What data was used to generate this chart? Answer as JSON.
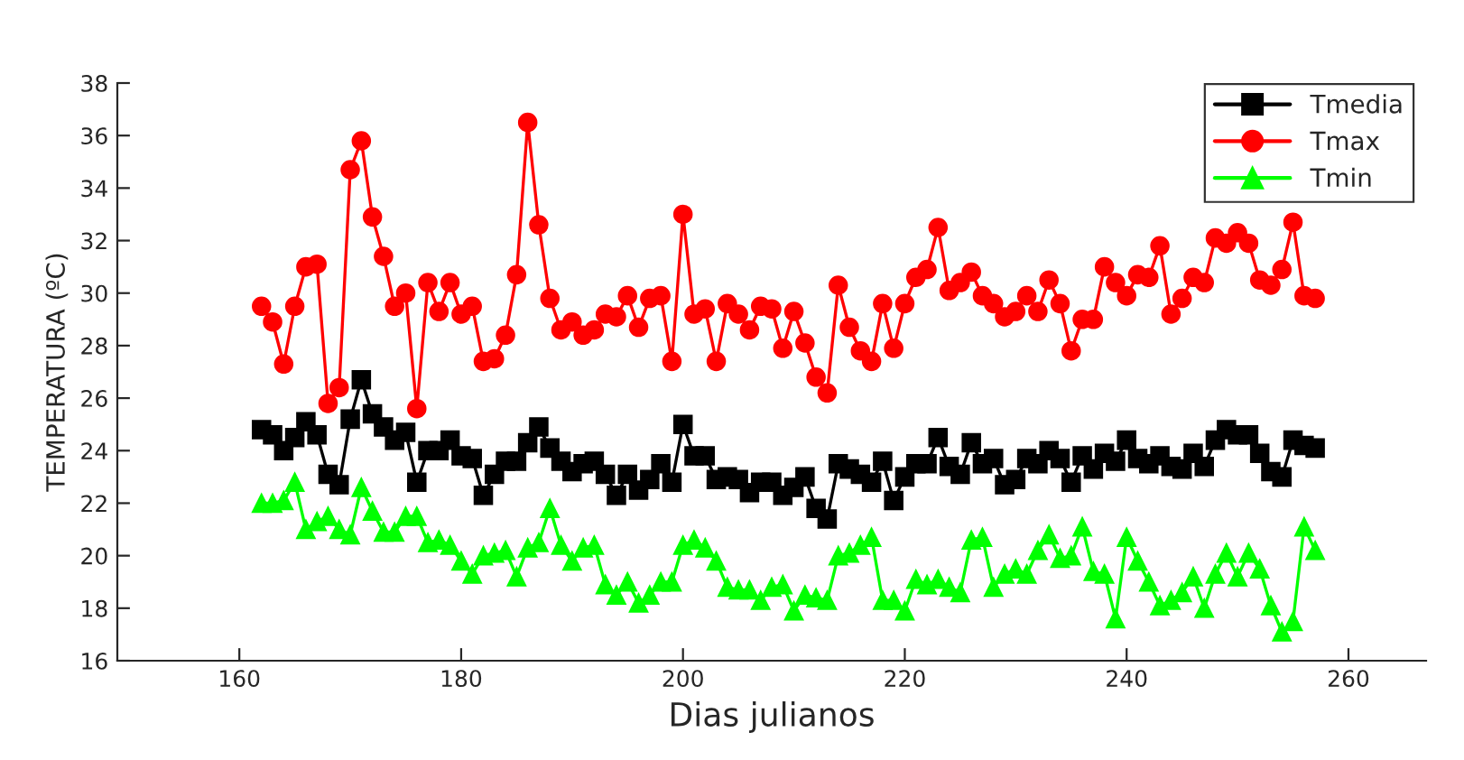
{
  "chart_data": {
    "type": "line",
    "xlabel": "Dias julianos",
    "ylabel": "TEMPERATURA (ºC)",
    "x": [
      162,
      163,
      164,
      165,
      166,
      167,
      168,
      169,
      170,
      171,
      172,
      173,
      174,
      175,
      176,
      177,
      178,
      179,
      180,
      181,
      182,
      183,
      184,
      185,
      186,
      187,
      188,
      189,
      190,
      191,
      192,
      193,
      194,
      195,
      196,
      197,
      198,
      199,
      200,
      201,
      202,
      203,
      204,
      205,
      206,
      207,
      208,
      209,
      210,
      211,
      212,
      213,
      214,
      215,
      216,
      217,
      218,
      219,
      220,
      221,
      222,
      223,
      224,
      225,
      226,
      227,
      228,
      229,
      230,
      231,
      232,
      233,
      234,
      235,
      236,
      237,
      238,
      239,
      240,
      241,
      242,
      243,
      244,
      245,
      246,
      247,
      248,
      249,
      250,
      251,
      252,
      253,
      254,
      255,
      256,
      257
    ],
    "series": [
      {
        "name": "Tmedia",
        "color": "#000000",
        "marker": "square",
        "values": [
          24.8,
          24.6,
          24.0,
          24.5,
          25.1,
          24.6,
          23.1,
          22.7,
          25.2,
          26.7,
          25.4,
          24.9,
          24.4,
          24.7,
          22.8,
          24.0,
          24.0,
          24.4,
          23.8,
          23.7,
          22.3,
          23.1,
          23.6,
          23.6,
          24.3,
          24.9,
          24.1,
          23.6,
          23.2,
          23.5,
          23.6,
          23.1,
          22.3,
          23.1,
          22.5,
          22.9,
          23.5,
          22.8,
          25.0,
          23.8,
          23.8,
          22.9,
          23.0,
          22.9,
          22.4,
          22.8,
          22.8,
          22.3,
          22.6,
          23.0,
          21.8,
          21.4,
          23.5,
          23.3,
          23.1,
          22.8,
          23.6,
          22.1,
          23.0,
          23.5,
          23.5,
          24.5,
          23.4,
          23.1,
          24.3,
          23.5,
          23.7,
          22.7,
          22.9,
          23.7,
          23.5,
          24.0,
          23.7,
          22.8,
          23.8,
          23.3,
          23.9,
          23.6,
          24.4,
          23.7,
          23.5,
          23.8,
          23.4,
          23.3,
          23.9,
          23.4,
          24.4,
          24.8,
          24.6,
          24.6,
          23.9,
          23.2,
          23.0,
          24.4,
          24.2,
          24.1
        ]
      },
      {
        "name": "Tmax",
        "color": "#ff0000",
        "marker": "circle",
        "values": [
          29.5,
          28.9,
          27.3,
          29.5,
          31.0,
          31.1,
          25.8,
          26.4,
          34.7,
          35.8,
          32.9,
          31.4,
          29.5,
          30.0,
          25.6,
          30.4,
          29.3,
          30.4,
          29.2,
          29.5,
          27.4,
          27.5,
          28.4,
          30.7,
          36.5,
          32.6,
          29.8,
          28.6,
          28.9,
          28.4,
          28.6,
          29.2,
          29.1,
          29.9,
          28.7,
          29.8,
          29.9,
          27.4,
          33.0,
          29.2,
          29.4,
          27.4,
          29.6,
          29.2,
          28.6,
          29.5,
          29.4,
          27.9,
          29.3,
          28.1,
          26.8,
          26.2,
          30.3,
          28.7,
          27.8,
          27.4,
          29.6,
          27.9,
          29.6,
          30.6,
          30.9,
          32.5,
          30.1,
          30.4,
          30.8,
          29.9,
          29.6,
          29.1,
          29.3,
          29.9,
          29.3,
          30.5,
          29.6,
          27.8,
          29.0,
          29.0,
          31.0,
          30.4,
          29.9,
          30.7,
          30.6,
          31.8,
          29.2,
          29.8,
          30.6,
          30.4,
          32.1,
          31.9,
          32.3,
          31.9,
          30.5,
          30.3,
          30.9,
          32.7,
          29.9,
          29.8
        ]
      },
      {
        "name": "Tmin",
        "color": "#00ff00",
        "marker": "triangle",
        "values": [
          22.0,
          22.0,
          22.1,
          22.8,
          21.0,
          21.3,
          21.5,
          21.0,
          20.8,
          22.6,
          21.7,
          20.9,
          20.9,
          21.5,
          21.5,
          20.5,
          20.6,
          20.4,
          19.8,
          19.3,
          20.0,
          20.1,
          20.2,
          19.2,
          20.3,
          20.5,
          21.8,
          20.4,
          19.8,
          20.3,
          20.4,
          18.9,
          18.5,
          19.0,
          18.2,
          18.5,
          19.0,
          19.0,
          20.4,
          20.6,
          20.3,
          19.8,
          18.8,
          18.7,
          18.7,
          18.3,
          18.8,
          18.9,
          17.9,
          18.5,
          18.4,
          18.3,
          20.0,
          20.1,
          20.4,
          20.7,
          18.3,
          18.3,
          17.9,
          19.1,
          18.9,
          19.1,
          18.8,
          18.6,
          20.6,
          20.7,
          18.8,
          19.3,
          19.5,
          19.3,
          20.2,
          20.8,
          19.9,
          20.0,
          21.1,
          19.4,
          19.3,
          17.6,
          20.7,
          19.8,
          19.0,
          18.1,
          18.3,
          18.6,
          19.2,
          18.0,
          19.3,
          20.1,
          19.2,
          20.1,
          19.5,
          18.1,
          17.1,
          17.5,
          21.1,
          20.2
        ]
      }
    ],
    "xlim": [
      149,
      267
    ],
    "xticks": [
      160,
      180,
      200,
      220,
      240,
      260
    ],
    "ylim": [
      16,
      38
    ],
    "yticks": [
      16,
      18,
      20,
      22,
      24,
      26,
      28,
      30,
      32,
      34,
      36,
      38
    ],
    "grid": false,
    "legend": "top right",
    "line_style": "solid"
  }
}
